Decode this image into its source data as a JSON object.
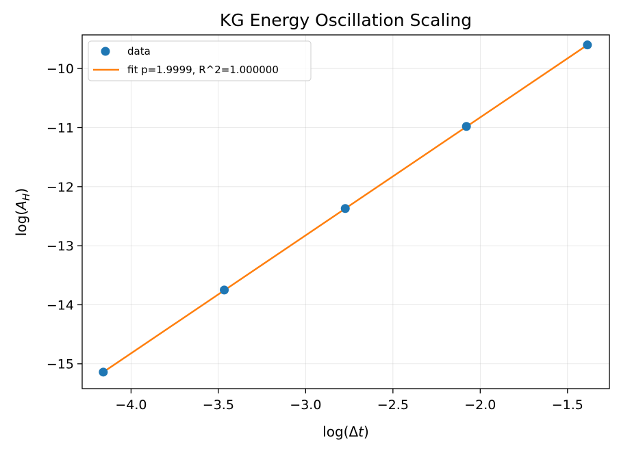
{
  "chart_data": {
    "type": "scatter",
    "title": "KG Energy Oscillation Scaling",
    "xlabel": "log(Δt)",
    "ylabel": "log(A_H)",
    "xlim": [
      -4.28,
      -1.26
    ],
    "ylim": [
      -15.42,
      -9.43
    ],
    "xticks": [
      -4.0,
      -3.5,
      -3.0,
      -2.5,
      -2.0,
      -1.5
    ],
    "xtick_labels": [
      "−4.0",
      "−3.5",
      "−3.0",
      "−2.5",
      "−2.0",
      "−1.5"
    ],
    "yticks": [
      -15,
      -14,
      -13,
      -12,
      -11,
      -10
    ],
    "ytick_labels": [
      "−15",
      "−14",
      "−13",
      "−12",
      "−11",
      "−10"
    ],
    "grid": true,
    "legend_position": "top-left",
    "series": [
      {
        "name": "data",
        "kind": "scatter",
        "color": "#1f77b4",
        "x": [
          -4.159,
          -3.466,
          -2.773,
          -2.079,
          -1.386
        ],
        "y": [
          -15.14,
          -13.75,
          -12.37,
          -10.98,
          -9.6
        ]
      },
      {
        "name": "fit p=1.9999, R^2=1.000000",
        "kind": "line",
        "color": "#ff7f0e",
        "x": [
          -4.159,
          -1.386
        ],
        "y": [
          -15.14,
          -9.6
        ]
      }
    ]
  }
}
